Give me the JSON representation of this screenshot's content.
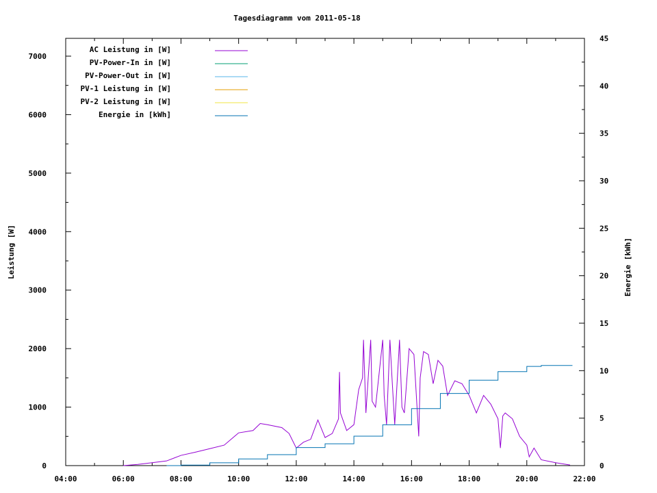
{
  "chart_data": {
    "type": "line",
    "title": "Tagesdiagramm vom 2011-05-18",
    "xlabel": "",
    "ylabel": "Leistung [W]",
    "y2label": "Energie [kWh]",
    "xlim": [
      "04:00",
      "22:00"
    ],
    "ylim": [
      0,
      7300
    ],
    "y2lim": [
      0,
      45
    ],
    "x_ticks": [
      "04:00",
      "06:00",
      "08:00",
      "10:00",
      "12:00",
      "14:00",
      "16:00",
      "18:00",
      "20:00",
      "22:00"
    ],
    "y_ticks": [
      "0",
      "1000",
      "2000",
      "3000",
      "4000",
      "5000",
      "6000",
      "7000"
    ],
    "y2_ticks": [
      "0",
      "5",
      "10",
      "15",
      "20",
      "25",
      "30",
      "35",
      "40",
      "45"
    ],
    "grid": false,
    "legend_position": "top-left",
    "series": [
      {
        "name": "AC Leistung in [W]",
        "axis": "left",
        "color": "#9400d3",
        "x": [
          "06:00",
          "06:30",
          "07:00",
          "07:30",
          "08:00",
          "08:30",
          "09:00",
          "09:30",
          "10:00",
          "10:30",
          "10:45",
          "11:00",
          "11:30",
          "11:45",
          "12:00",
          "12:15",
          "12:30",
          "12:45",
          "13:00",
          "13:15",
          "13:28",
          "13:30",
          "13:32",
          "13:45",
          "14:00",
          "14:10",
          "14:18",
          "14:20",
          "14:25",
          "14:35",
          "14:38",
          "14:45",
          "15:00",
          "15:03",
          "15:08",
          "15:15",
          "15:20",
          "15:25",
          "15:35",
          "15:40",
          "15:45",
          "15:55",
          "16:05",
          "16:15",
          "16:18",
          "16:25",
          "16:35",
          "16:45",
          "16:55",
          "17:05",
          "17:15",
          "17:30",
          "17:45",
          "18:00",
          "18:15",
          "18:30",
          "18:45",
          "19:00",
          "19:05",
          "19:10",
          "19:15",
          "19:30",
          "19:45",
          "20:00",
          "20:05",
          "20:15",
          "20:30",
          "21:00",
          "21:30"
        ],
        "values": [
          0,
          20,
          50,
          80,
          175,
          230,
          290,
          350,
          560,
          600,
          720,
          700,
          650,
          550,
          300,
          400,
          450,
          780,
          480,
          550,
          800,
          1600,
          900,
          600,
          700,
          1300,
          1500,
          2150,
          900,
          2150,
          1100,
          1000,
          2150,
          1200,
          700,
          2150,
          1400,
          700,
          2150,
          1000,
          900,
          2000,
          1900,
          500,
          1500,
          1950,
          1900,
          1400,
          1800,
          1700,
          1200,
          1450,
          1400,
          1200,
          900,
          1200,
          1050,
          800,
          300,
          850,
          900,
          800,
          500,
          350,
          150,
          300,
          100,
          50,
          10
        ]
      },
      {
        "name": "PV-Power-In in [W]",
        "axis": "left",
        "color": "#009e73",
        "x": [],
        "values": []
      },
      {
        "name": "PV-Power-Out in [W]",
        "axis": "left",
        "color": "#56b4e9",
        "x": [],
        "values": []
      },
      {
        "name": "PV-1 Leistung in [W]",
        "axis": "left",
        "color": "#e69f00",
        "x": [],
        "values": []
      },
      {
        "name": "PV-2 Leistung in [W]",
        "axis": "left",
        "color": "#f0e442",
        "x": [],
        "values": []
      },
      {
        "name": "Energie in [kWh]",
        "axis": "right",
        "color": "#0072b2",
        "x": [
          "07:30",
          "08:00",
          "09:00",
          "10:00",
          "11:00",
          "12:00",
          "13:00",
          "14:00",
          "15:00",
          "16:00",
          "17:00",
          "18:00",
          "19:00",
          "20:00",
          "20:30",
          "21:35"
        ],
        "values": [
          0,
          0.05,
          0.3,
          0.7,
          1.15,
          1.9,
          2.3,
          3.1,
          4.3,
          6.0,
          7.6,
          9.0,
          9.9,
          10.45,
          10.55,
          10.55
        ]
      }
    ]
  }
}
